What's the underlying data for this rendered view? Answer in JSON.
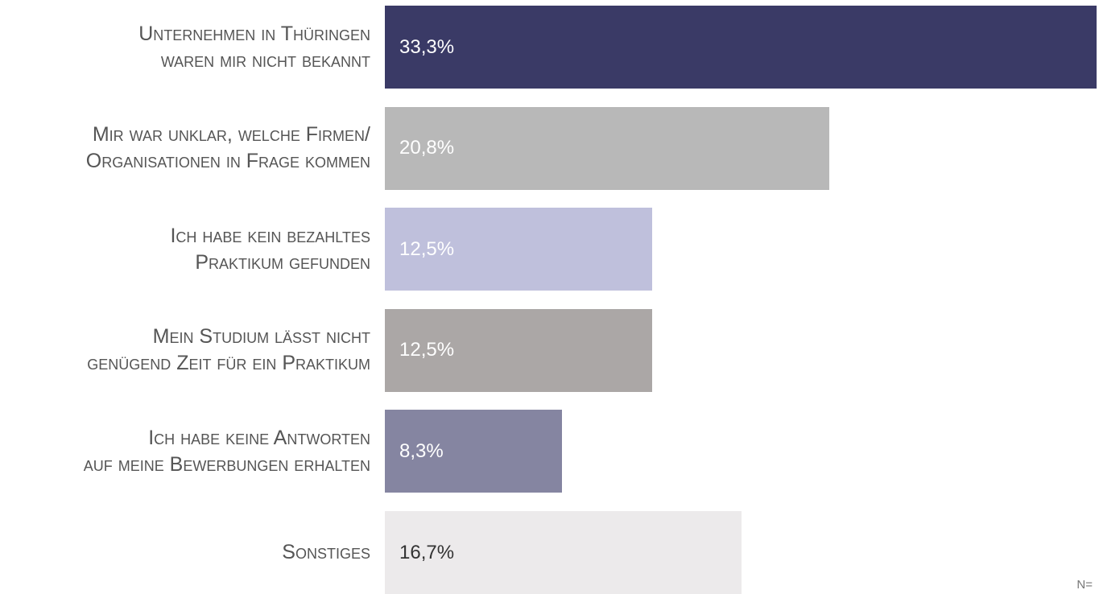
{
  "chart_data": {
    "type": "bar",
    "orientation": "horizontal",
    "categories": [
      "Unternehmen in Thüringen\nwaren mir nicht bekannt",
      "Mir war unklar, welche Firmen/\nOrganisationen in Frage kommen",
      "Ich habe kein bezahltes\nPraktikum gefunden",
      "Mein Studium lässt nicht\ngenügend Zeit für ein Praktikum",
      "Ich habe keine Antworten\nauf meine Bewerbungen erhalten",
      "Sonstiges"
    ],
    "values": [
      33.3,
      20.8,
      12.5,
      12.5,
      8.3,
      16.7
    ],
    "value_labels": [
      "33,3%",
      "20,8%",
      "12,5%",
      "12,5%",
      "8,3%",
      "16,7%"
    ],
    "colors": [
      "#3a3a66",
      "#b8b8b8",
      "#bfc0dc",
      "#aba7a6",
      "#8585a1",
      "#eceaeb"
    ],
    "annotation": "N="
  }
}
